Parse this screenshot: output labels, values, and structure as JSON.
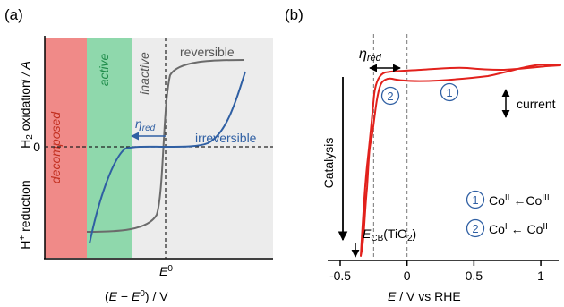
{
  "colors": {
    "decomposed": "#f08a88",
    "active": "#8fd8ac",
    "inactive": "#ececec",
    "reversible": "#6b6b6b",
    "irreversible": "#2f5fa3",
    "cv": "#e2211c",
    "blue_text": "#2f5fa3",
    "green_text": "#1f8c4a",
    "red_text": "#c23020"
  },
  "panel_a": {
    "label": "(a)",
    "ylabel_main": "i / A",
    "ylabel_top": "H2 oxidation",
    "ylabel_bottom": "H+ reduction",
    "ytick_zero": "0",
    "xtick_e0": "E0",
    "xlabel": "(E − E0) / V",
    "regions": {
      "decomposed": "decomposed",
      "active": "active",
      "inactive": "inactive"
    },
    "curve_labels": {
      "reversible": "reversible",
      "irreversible": "irreversible",
      "eta_red": "ηred"
    }
  },
  "chart_data": [
    {
      "type": "line",
      "panel": "(a)",
      "title": "",
      "xlabel": "(E − E0) / V",
      "ylabel": "i / A",
      "x_ticks": [
        "E0"
      ],
      "y_ticks": [
        "0"
      ],
      "regions": [
        "decomposed",
        "active",
        "inactive"
      ],
      "series": [
        {
          "name": "reversible",
          "shape": "sigmoid centred at E0"
        },
        {
          "name": "irreversible",
          "shape": "sigmoid with overpotential ηred on both sides of E0"
        }
      ]
    },
    {
      "type": "line",
      "panel": "(b)",
      "title": "",
      "xlabel": "E / V vs RHE",
      "ylabel": "",
      "xlim": [
        -0.5,
        1.25
      ],
      "x_ticks": [
        -0.5,
        0,
        0.5,
        1
      ],
      "reference_lines_x": [
        -0.25,
        0
      ],
      "annotations": [
        "ηred",
        "current",
        "Catalysis",
        "ECB(TiO2)",
        "1 CoII ← CoIII",
        "2 CoI ← CoII"
      ],
      "series": [
        {
          "name": "",
          "shape": "cyclic voltammogram"
        }
      ]
    }
  ],
  "panel_b": {
    "label": "(b)",
    "xlabel": "E / V vs RHE",
    "xticks": [
      "-0.5",
      "0",
      "0.5",
      "1"
    ],
    "eta_red": "ηred",
    "current_label": "current",
    "catalysis_label": "Catalysis",
    "ecb_label": "ECB(TiO2)",
    "peak1": "1",
    "peak2": "2",
    "legend": [
      {
        "num": "1",
        "text": "CoII ←CoIII"
      },
      {
        "num": "2",
        "text": "CoI ← CoII"
      }
    ]
  }
}
